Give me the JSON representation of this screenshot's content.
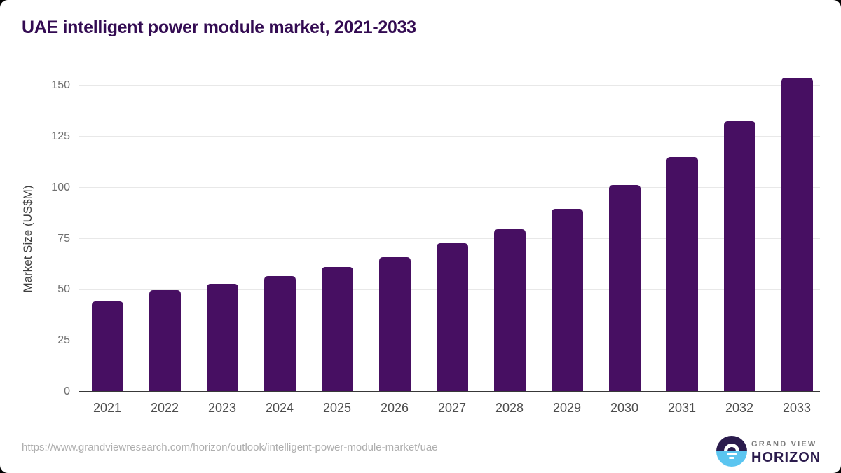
{
  "title": "UAE intelligent power module market, 2021-2033",
  "chart_data": {
    "type": "bar",
    "title": "UAE intelligent power module market, 2021-2033",
    "categories": [
      "2021",
      "2022",
      "2023",
      "2024",
      "2025",
      "2026",
      "2027",
      "2028",
      "2029",
      "2030",
      "2031",
      "2032",
      "2033"
    ],
    "values": [
      44.3,
      49.7,
      52.9,
      56.8,
      61.1,
      66.0,
      72.9,
      79.7,
      89.5,
      101.4,
      115.0,
      132.6,
      153.9
    ],
    "series_name": "Market Size",
    "xlabel": "",
    "ylabel": "Market Size (US$M)",
    "ylim": [
      0,
      150
    ],
    "yticks": [
      0,
      25,
      50,
      75,
      100,
      125,
      150
    ],
    "grid": "horizontal",
    "legend": "none",
    "bar_color": "#470f62"
  },
  "footer": {
    "source_url": "https://www.grandviewresearch.com/horizon/outlook/intelligent-power-module-market/uae",
    "logo": {
      "line1": "GRAND VIEW",
      "line2": "HORIZON"
    }
  },
  "colors": {
    "bar": "#470f62",
    "title_text": "#330b52",
    "gridline": "#e8e8e8",
    "axis_line": "#383838",
    "y_tick_text": "#6f6f6f",
    "x_tick_text": "#4c4c4c",
    "url_text": "#aeaeae",
    "logo_dark": "#2b1b4d",
    "logo_blue": "#5bc5f0"
  }
}
